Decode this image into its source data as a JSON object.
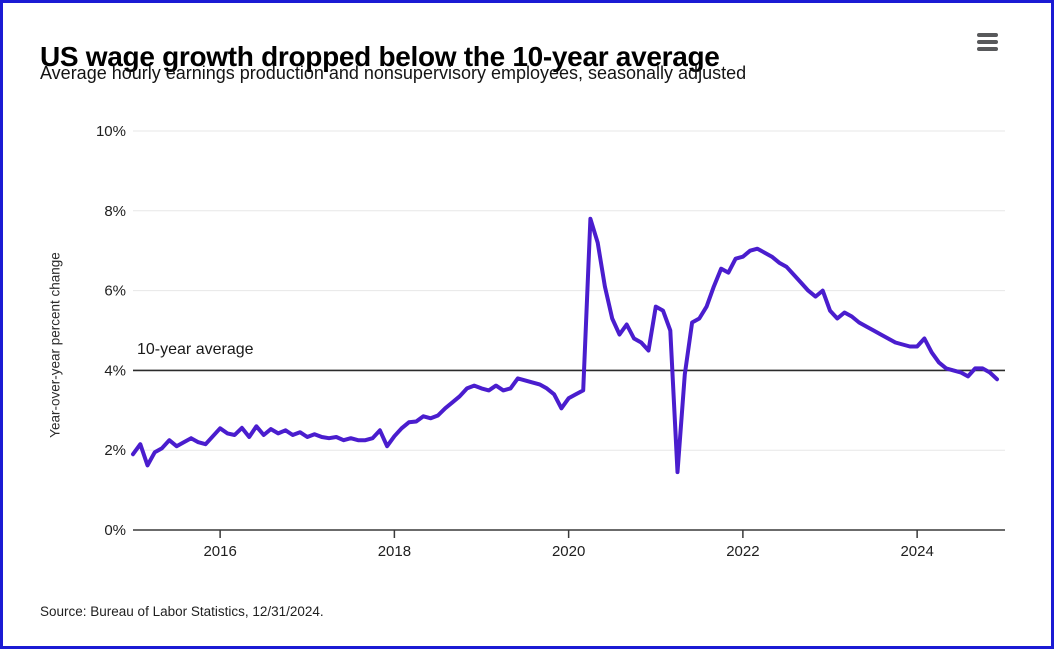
{
  "header": {
    "title": "US wage growth dropped below the 10-year average",
    "subtitle": "Average hourly earnings production and nonsupervisory employees, seasonally adjusted"
  },
  "footer": {
    "source": "Source: Bureau of Labor Statistics, 12/31/2024."
  },
  "colors": {
    "line": "#4a1dce",
    "frame_border": "#1b1bd4",
    "gridline": "#e7e7e7",
    "axis": "#3a3a3a",
    "reference_line": "#2b2b2b",
    "tick_label": "#202020",
    "menu_icon": "#58595b"
  },
  "chart_data": {
    "type": "line",
    "title": "US wage growth dropped below the 10-year average",
    "subtitle": "Average hourly earnings production and nonsupervisory employees, seasonally adjusted",
    "source": "Source: Bureau of Labor Statistics, 12/31/2024.",
    "xlabel": "",
    "ylabel": "Year-over-year percent change",
    "x_start": "2015-01",
    "x_end": "2024-12",
    "x_interval": "monthly",
    "ylim": [
      0,
      10
    ],
    "grid": "horizontal",
    "legend": "none",
    "yticks": [
      {
        "label": "0%",
        "value": 0
      },
      {
        "label": "2%",
        "value": 2
      },
      {
        "label": "4%",
        "value": 4
      },
      {
        "label": "6%",
        "value": 6
      },
      {
        "label": "8%",
        "value": 8
      },
      {
        "label": "10%",
        "value": 10
      }
    ],
    "xticks": [
      {
        "label": "2016",
        "year": 2016
      },
      {
        "label": "2018",
        "year": 2018
      },
      {
        "label": "2020",
        "year": 2020
      },
      {
        "label": "2022",
        "year": 2022
      },
      {
        "label": "2024",
        "year": 2024
      }
    ],
    "reference_line": {
      "label": "10-year average",
      "value": 4.0
    },
    "series": [
      {
        "name": "Average hourly earnings, year-over-year percent change",
        "values": [
          1.9,
          2.15,
          1.62,
          1.95,
          2.05,
          2.25,
          2.1,
          2.2,
          2.3,
          2.2,
          2.15,
          2.35,
          2.55,
          2.42,
          2.38,
          2.56,
          2.33,
          2.6,
          2.38,
          2.53,
          2.42,
          2.5,
          2.38,
          2.45,
          2.33,
          2.4,
          2.33,
          2.3,
          2.33,
          2.25,
          2.3,
          2.25,
          2.25,
          2.3,
          2.5,
          2.1,
          2.35,
          2.55,
          2.7,
          2.72,
          2.85,
          2.8,
          2.87,
          3.05,
          3.2,
          3.35,
          3.55,
          3.62,
          3.55,
          3.5,
          3.62,
          3.5,
          3.55,
          3.8,
          3.75,
          3.7,
          3.65,
          3.55,
          3.4,
          3.05,
          3.3,
          3.4,
          3.5,
          7.8,
          7.2,
          6.1,
          5.3,
          4.9,
          5.15,
          4.8,
          4.7,
          4.5,
          5.6,
          5.5,
          5.0,
          1.45,
          3.9,
          5.2,
          5.3,
          5.6,
          6.1,
          6.55,
          6.45,
          6.8,
          6.85,
          7.0,
          7.05,
          6.95,
          6.85,
          6.7,
          6.6,
          6.4,
          6.2,
          6.0,
          5.85,
          6.0,
          5.5,
          5.3,
          5.45,
          5.35,
          5.2,
          5.1,
          5.0,
          4.9,
          4.8,
          4.7,
          4.65,
          4.6,
          4.6,
          4.8,
          4.45,
          4.2,
          4.05,
          4.0,
          3.95,
          3.85,
          4.05,
          4.05,
          3.95,
          3.78
        ]
      }
    ]
  }
}
